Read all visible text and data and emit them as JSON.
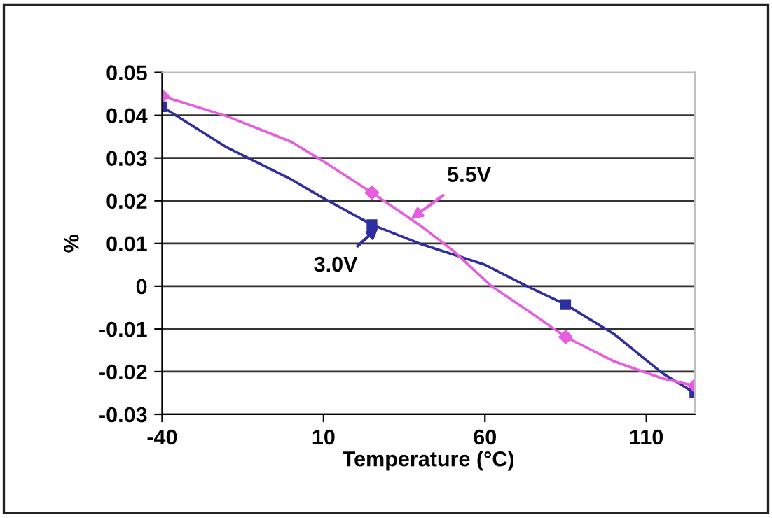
{
  "chart_data": {
    "type": "line",
    "xlabel": "Temperature (°C)",
    "ylabel": "%",
    "xlim": [
      -40,
      125
    ],
    "xticks": [
      -40,
      10,
      60,
      110
    ],
    "ylim": [
      -0.03,
      0.05
    ],
    "yticks": [
      0.05,
      0.04,
      0.03,
      0.02,
      0.01,
      0,
      -0.01,
      -0.02,
      -0.03
    ],
    "grid": "y",
    "legend": false,
    "series": [
      {
        "color": "#2e2e9e",
        "marker": "none",
        "x": [
          -40,
          -20,
          0,
          10,
          25,
          40,
          60,
          73,
          85,
          100,
          115,
          125
        ],
        "values": [
          0.042,
          0.0325,
          0.025,
          0.0206,
          0.0144,
          0.0099,
          0.005,
          0,
          -0.0043,
          -0.0112,
          -0.0204,
          -0.025
        ]
      },
      {
        "color": "#e85ce0",
        "marker": "none",
        "x": [
          -40,
          -20,
          0,
          10,
          25,
          40,
          50,
          62,
          75,
          85,
          100,
          115,
          125
        ],
        "values": [
          0.0445,
          0.0398,
          0.0338,
          0.0292,
          0.0219,
          0.0142,
          0.0084,
          0,
          -0.0066,
          -0.0119,
          -0.0176,
          -0.0216,
          -0.0233
        ]
      },
      {
        "type": "scatter",
        "color": "#2e2e9e",
        "marker": "square",
        "x": [
          -40,
          25,
          85,
          125
        ],
        "values": [
          0.042,
          0.0144,
          -0.0043,
          -0.025
        ]
      },
      {
        "type": "scatter",
        "color": "#e85ce0",
        "marker": "diamond",
        "x": [
          -40,
          25,
          85,
          125
        ],
        "values": [
          0.0445,
          0.0219,
          -0.0119,
          -0.0233
        ]
      }
    ],
    "annotations": [
      {
        "text": "5.5V",
        "x": 37,
        "y": 0.0157
      },
      {
        "text": "3.0V",
        "x": 27,
        "y": 0.0138
      }
    ]
  }
}
